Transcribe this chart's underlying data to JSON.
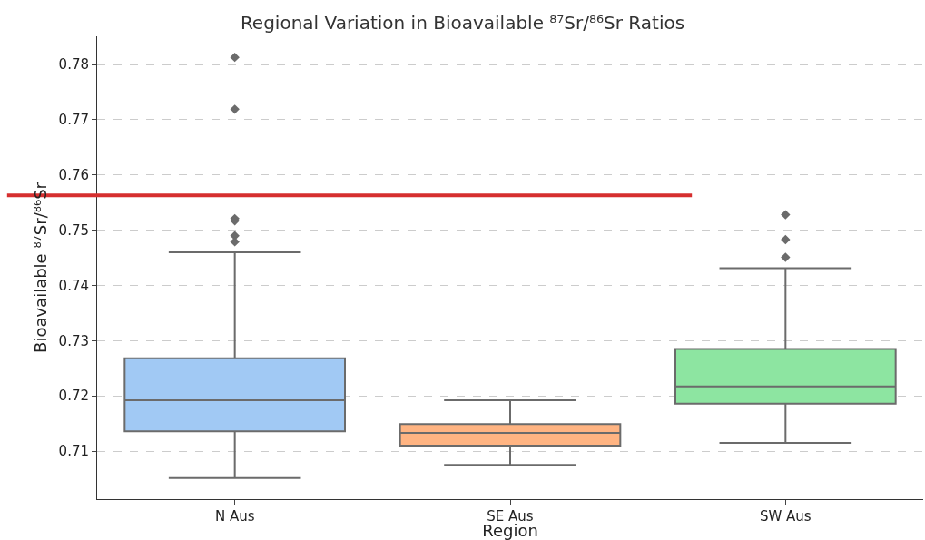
{
  "chart_data": {
    "type": "box",
    "title": "Regional Variation in Bioavailable ⁸⁷Sr/⁸⁶Sr Ratios",
    "xlabel": "Region",
    "ylabel": "Bioavailable ⁸⁷Sr/⁸⁶Sr",
    "categories": [
      "N Aus",
      "SE Aus",
      "SW Aus"
    ],
    "colors": [
      "#a1c9f4",
      "#ffb482",
      "#8de5a1"
    ],
    "boxes": [
      {
        "low": 0.7051,
        "q1": 0.7136,
        "median": 0.7192,
        "q3": 0.7268,
        "high": 0.746,
        "outliers": [
          0.7813,
          0.7719,
          0.7521,
          0.7517,
          0.749,
          0.7479
        ]
      },
      {
        "low": 0.7075,
        "q1": 0.711,
        "median": 0.7133,
        "q3": 0.7149,
        "high": 0.7192
      },
      {
        "low": 0.7115,
        "q1": 0.7186,
        "median": 0.7217,
        "q3": 0.7285,
        "high": 0.7431,
        "outliers": [
          0.7528,
          0.7483,
          0.7451
        ]
      }
    ],
    "ylim": [
      0.7013,
      0.7851
    ],
    "yticks": [
      0.71,
      0.72,
      0.73,
      0.74,
      0.75,
      0.76,
      0.77,
      0.78
    ],
    "ref_lines": [
      {
        "axis": "y",
        "value": 0.7563,
        "color": "#d62f2f"
      }
    ],
    "grid": "y",
    "marker": "diamond"
  }
}
